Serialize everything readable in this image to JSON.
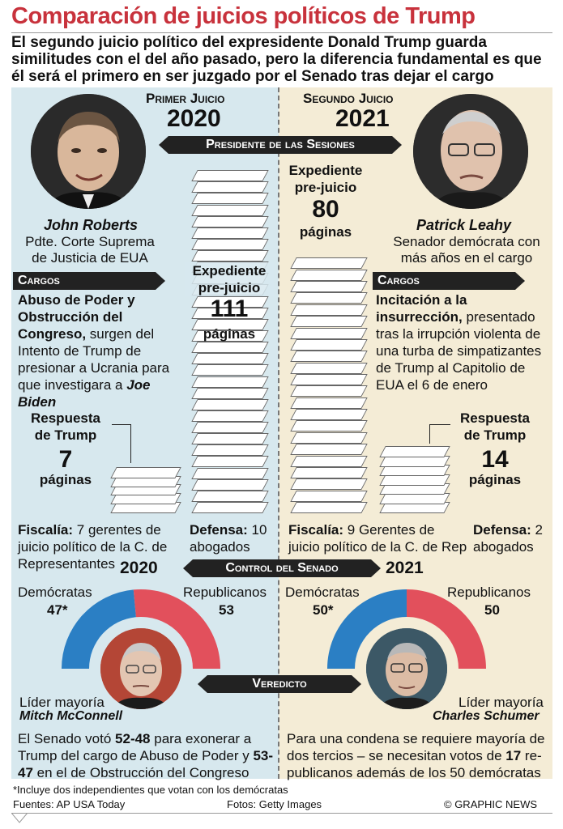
{
  "header": {
    "title": "Comparación de juicios políticos de Trump",
    "subtitle": "El segundo juicio político del expresidente Donald Trump guarda similitudes con el del año pasado, pero la diferencia fundamental es que él será el primero en ser juzgado por el Senado tras dejar el cargo"
  },
  "first_trial": {
    "label": "Primer Juicio",
    "year": "2020",
    "presiding": {
      "name": "John Roberts",
      "role": "Pdte. Corte Suprema de Justicia de EUA"
    },
    "cargos_label": "Cargos",
    "charges_bold": "Abuso de Poder y Obstrucción del Congreso,",
    "charges_text": " surgen del Intento de Trump de presionar a Ucrania para que investigara a ",
    "charges_name": "Joe Biden",
    "dossier": {
      "label": "Expediente pre-juicio",
      "pages": "111",
      "unit": "páginas"
    },
    "response": {
      "label": "Respuesta de Trump",
      "pages": "7",
      "unit": "páginas"
    },
    "prosecution_label": "Fiscalía:",
    "prosecution": " 7 gerentes de juicio político de la C. de Representantes",
    "defense_label": "Defensa:",
    "defense": " 10 abogados",
    "senate": {
      "year": "2020",
      "dem_label": "Demócratas",
      "dem_seats": "47*",
      "rep_label": "Republicanos",
      "rep_seats": "53",
      "dem_share": 0.47
    },
    "leader": {
      "label": "Líder mayoría",
      "name": "Mitch McConnell"
    },
    "verdict_p1": "El Senado votó ",
    "verdict_v1": "52-48",
    "verdict_p2": " para exonerar a Trump del cargo de Abuso de Poder y ",
    "verdict_v2": "53-47",
    "verdict_p3": " en el de Obstrucción del Congreso"
  },
  "second_trial": {
    "label": "Segundo Juicio",
    "year": "2021",
    "presiding": {
      "name": "Patrick Leahy",
      "role": "Senador demócrata con más años en el cargo"
    },
    "cargos_label": "Cargos",
    "charges_bold": "Incitación a la insurrección,",
    "charges_text": " presentado tras la irrupción violenta de una turba de simpatizantes de Trump al Capitolio de EUA el 6 de enero",
    "dossier": {
      "label": "Expediente pre-juicio",
      "pages": "80",
      "unit": "páginas"
    },
    "response": {
      "label": "Respuesta de Trump",
      "pages": "14",
      "unit": "páginas"
    },
    "prosecution_label": "Fiscalía:",
    "prosecution": " 9 Gerentes de juicio político de la C. de Rep",
    "defense_label": "Defensa:",
    "defense": " 2 abogados",
    "senate": {
      "year": "2021",
      "dem_label": "Demócratas",
      "dem_seats": "50*",
      "rep_label": "Republicanos",
      "rep_seats": "50",
      "dem_share": 0.5
    },
    "leader": {
      "label": "Líder mayoría",
      "name": "Charles Schumer"
    },
    "verdict_p1": "Para una condena se requiere mayoría de dos tercios – se necesitan votos de ",
    "verdict_v1": "17",
    "verdict_p2": " re-publicanos además de los 50 demócratas"
  },
  "banners": {
    "presiding": "Presidente de las Sesiones",
    "senate": "Control del Senado",
    "verdict": "Veredicto"
  },
  "footer": {
    "note": "*Incluye dos independientes que votan con los demócratas",
    "sources": "Fuentes: AP USA Today",
    "photos": "Fotos: Getty Images",
    "credit": "© GRAPHIC NEWS"
  },
  "colors": {
    "dem": "#2b7fc4",
    "rep": "#e2505c",
    "title": "#c8323c",
    "left_bg": "#d7e8ee",
    "right_bg": "#f4ecd6"
  }
}
